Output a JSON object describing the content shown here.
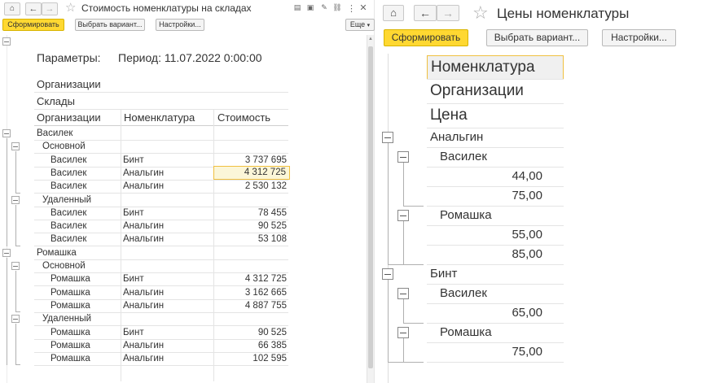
{
  "left": {
    "title": "Стоимость номенклатуры на складах",
    "buttons": {
      "generate": "Сформировать",
      "variant": "Выбрать вариант...",
      "settings": "Настройки...",
      "more": "Еще"
    },
    "params_label": "Параметры:",
    "params_value": "Период: 11.07.2022 0:00:00",
    "group_headers": [
      "Организации",
      "Склады"
    ],
    "columns": [
      "Организации",
      "Номенклатура",
      "Стоимость"
    ],
    "groups": [
      {
        "org": "Василек",
        "warehouses": [
          {
            "name": "Основной",
            "rows": [
              {
                "org": "Василек",
                "item": "Бинт",
                "value": "3 737 695"
              },
              {
                "org": "Василек",
                "item": "Анальгин",
                "value": "4 312 725"
              },
              {
                "org": "Василек",
                "item": "Анальгин",
                "value": "2 530 132"
              }
            ]
          },
          {
            "name": "Удаленный",
            "rows": [
              {
                "org": "Василек",
                "item": "Бинт",
                "value": "78 455"
              },
              {
                "org": "Василек",
                "item": "Анальгин",
                "value": "90 525"
              },
              {
                "org": "Василек",
                "item": "Анальгин",
                "value": "53 108"
              }
            ]
          }
        ]
      },
      {
        "org": "Ромашка",
        "warehouses": [
          {
            "name": "Основной",
            "rows": [
              {
                "org": "Ромашка",
                "item": "Бинт",
                "value": "4 312 725"
              },
              {
                "org": "Ромашка",
                "item": "Анальгин",
                "value": "3 162 665"
              },
              {
                "org": "Ромашка",
                "item": "Анальгин",
                "value": "4 887 755"
              }
            ]
          },
          {
            "name": "Удаленный",
            "rows": [
              {
                "org": "Ромашка",
                "item": "Бинт",
                "value": "90 525"
              },
              {
                "org": "Ромашка",
                "item": "Анальгин",
                "value": "66 385"
              },
              {
                "org": "Ромашка",
                "item": "Анальгин",
                "value": "102 595"
              }
            ]
          }
        ]
      }
    ],
    "toolbar_icons": [
      "print-icon",
      "save-icon",
      "edit-icon",
      "link-icon",
      "more-vertical-icon",
      "close-icon"
    ]
  },
  "right": {
    "title": "Цены номенклатуры",
    "buttons": {
      "generate": "Сформировать",
      "variant": "Выбрать вариант...",
      "settings": "Настройки..."
    },
    "headers": [
      "Номенклатура",
      "Организации",
      "Цена"
    ],
    "groups": [
      {
        "item": "Анальгин",
        "orgs": [
          {
            "name": "Василек",
            "prices": [
              "44,00",
              "75,00"
            ]
          },
          {
            "name": "Ромашка",
            "prices": [
              "55,00",
              "85,00"
            ]
          }
        ]
      },
      {
        "item": "Бинт",
        "orgs": [
          {
            "name": "Василек",
            "prices": [
              "65,00"
            ]
          },
          {
            "name": "Ромашка",
            "prices": [
              "75,00"
            ]
          }
        ]
      }
    ]
  },
  "colors": {
    "primary_button": "#ffd831",
    "selected_cell_border": "#f0c040"
  }
}
